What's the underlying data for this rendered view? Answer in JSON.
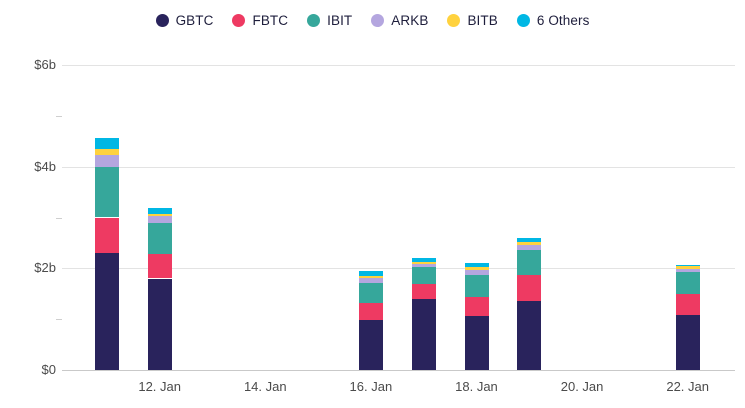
{
  "chart_data": {
    "type": "bar",
    "stacked": true,
    "title": "",
    "xlabel": "",
    "ylabel": "",
    "ylim": [
      0,
      6
    ],
    "grid": true,
    "legend_position": "top",
    "y_ticks": [
      {
        "value": 6,
        "label": "$6b"
      },
      {
        "value": 4,
        "label": "$4b"
      },
      {
        "value": 2,
        "label": "$2b"
      },
      {
        "value": 0,
        "label": "$0"
      }
    ],
    "y_minor_ticks": [
      1,
      3,
      5
    ],
    "x_ticks": [
      {
        "day": 12,
        "label": "12. Jan"
      },
      {
        "day": 14,
        "label": "14. Jan"
      },
      {
        "day": 16,
        "label": "16. Jan"
      },
      {
        "day": 18,
        "label": "18. Jan"
      },
      {
        "day": 20,
        "label": "20. Jan"
      },
      {
        "day": 22,
        "label": "22. Jan"
      }
    ],
    "bar_days": [
      11,
      12,
      16,
      17,
      18,
      19,
      22
    ],
    "series": [
      {
        "name": "GBTC",
        "color": "#29235c",
        "values": [
          2.3,
          1.8,
          0.98,
          1.4,
          1.06,
          1.36,
          1.08
        ]
      },
      {
        "name": "FBTC",
        "color": "#ee3a62",
        "values": [
          0.7,
          0.48,
          0.33,
          0.29,
          0.37,
          0.51,
          0.41
        ]
      },
      {
        "name": "IBIT",
        "color": "#36a79b",
        "values": [
          1.0,
          0.62,
          0.4,
          0.33,
          0.44,
          0.5,
          0.44
        ]
      },
      {
        "name": "ARKB",
        "color": "#b4a6df",
        "values": [
          0.22,
          0.12,
          0.1,
          0.06,
          0.1,
          0.08,
          0.06
        ]
      },
      {
        "name": "BITB",
        "color": "#ffd23e",
        "values": [
          0.13,
          0.05,
          0.04,
          0.04,
          0.06,
          0.07,
          0.05
        ]
      },
      {
        "name": "6 Others",
        "color": "#00b7e4",
        "values": [
          0.22,
          0.12,
          0.1,
          0.08,
          0.07,
          0.08,
          0.03
        ]
      }
    ]
  },
  "colors": {
    "background": "#ffffff",
    "gridline": "#e3e3e3",
    "baseline": "#c9c9c9",
    "axis_text": "#4b4b4b",
    "legend_text": "#1e1e3c"
  }
}
